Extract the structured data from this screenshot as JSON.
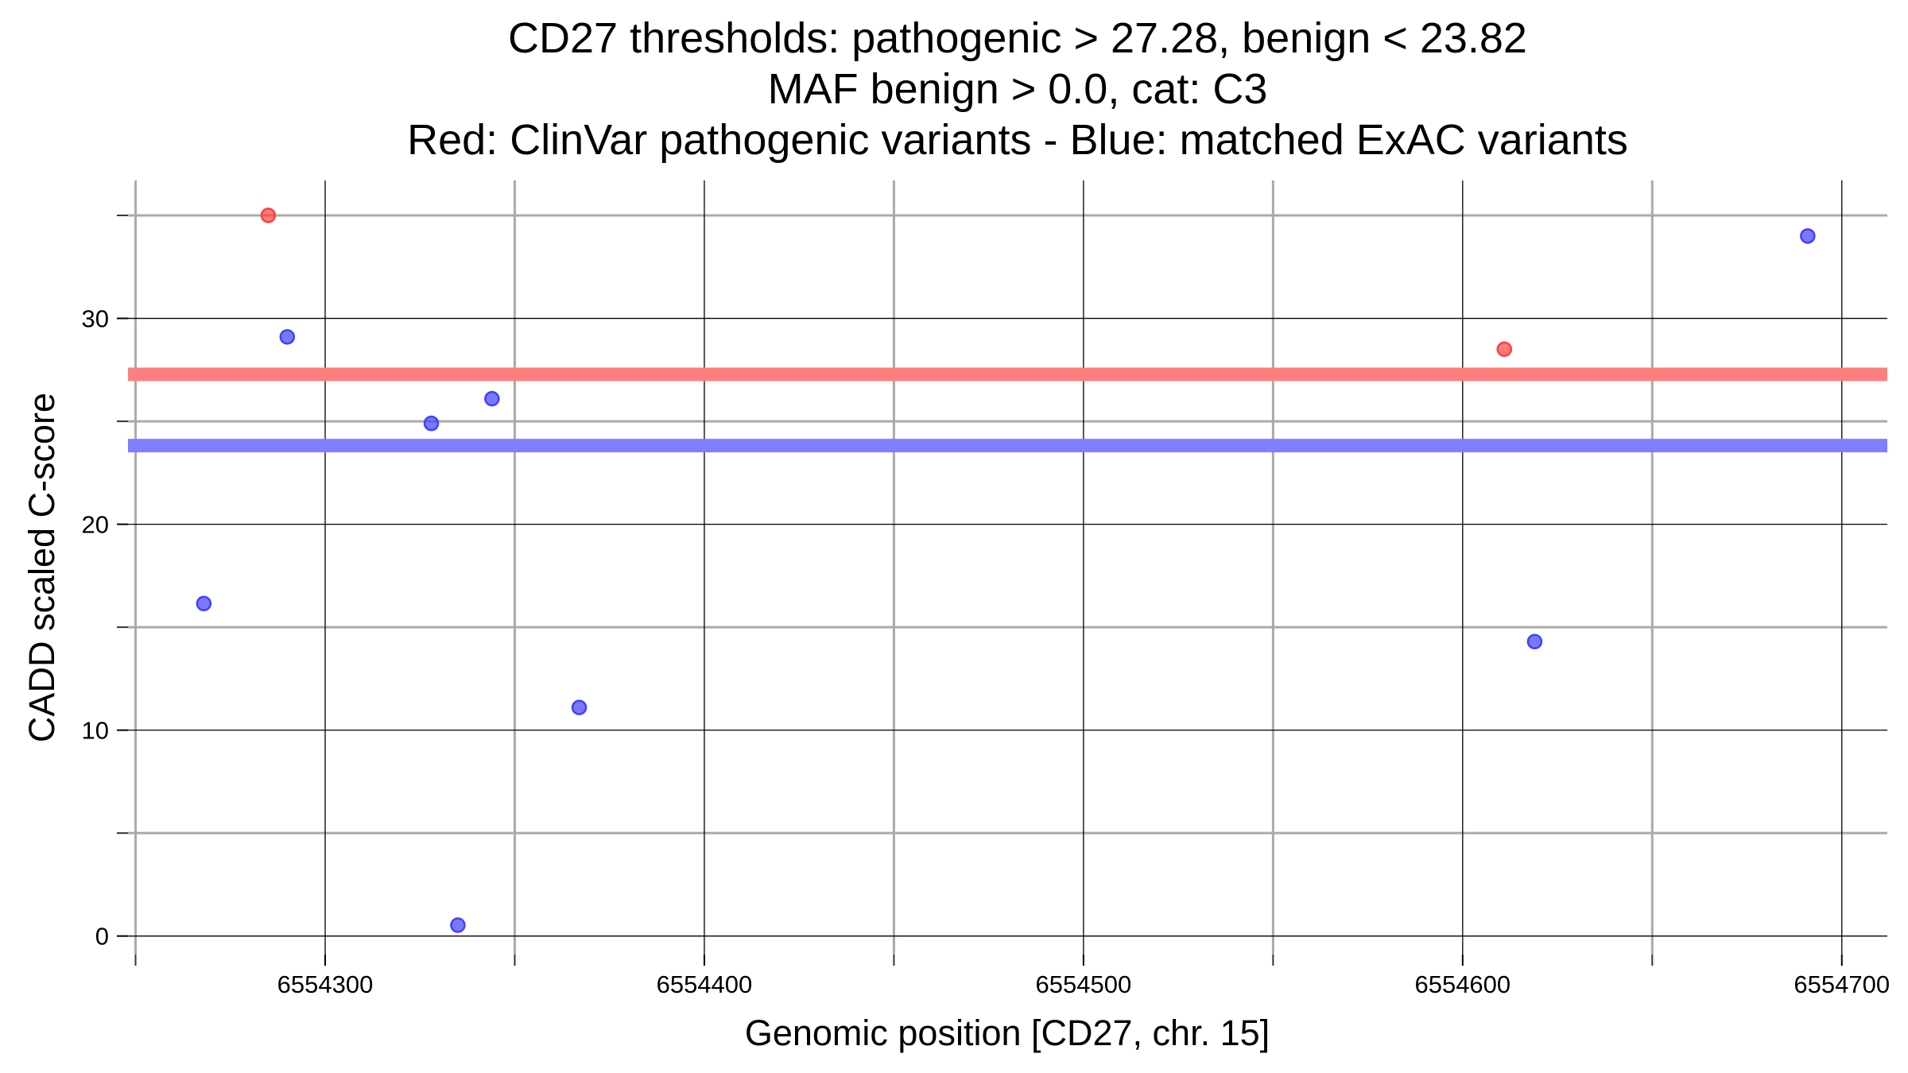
{
  "chart_data": {
    "type": "scatter",
    "title": [
      "CD27 thresholds: pathogenic > 27.28, benign < 23.82",
      "MAF benign > 0.0, cat: C3",
      "Red: ClinVar pathogenic variants - Blue: matched ExAC variants"
    ],
    "x_label": "Genomic position [CD27, chr. 15]",
    "y_label": "CADD scaled C-score",
    "xlim": [
      6554248,
      6554712
    ],
    "ylim": [
      -0.9,
      36.7
    ],
    "xticks": [
      6554300,
      6554400,
      6554500,
      6554600,
      6554700
    ],
    "xminor": [
      6554250,
      6554350,
      6554450,
      6554550,
      6554650
    ],
    "yticks": [
      0,
      10,
      20,
      30
    ],
    "yminor": [
      5,
      15,
      25,
      35
    ],
    "grid": true,
    "thresholds": [
      {
        "value": 27.28,
        "color": "#ff7f7f"
      },
      {
        "value": 23.82,
        "color": "#8080ff"
      }
    ],
    "series": [
      {
        "color": "#ff4040",
        "x": [
          6554285,
          6554611
        ],
        "values": [
          35.0,
          28.5
        ]
      },
      {
        "color": "#4040ff",
        "x": [
          6554268,
          6554290,
          6554328,
          6554344,
          6554335,
          6554367,
          6554619,
          6554691
        ],
        "values": [
          16.15,
          29.1,
          24.9,
          26.1,
          0.53,
          11.1,
          14.3,
          34.0
        ]
      }
    ]
  }
}
